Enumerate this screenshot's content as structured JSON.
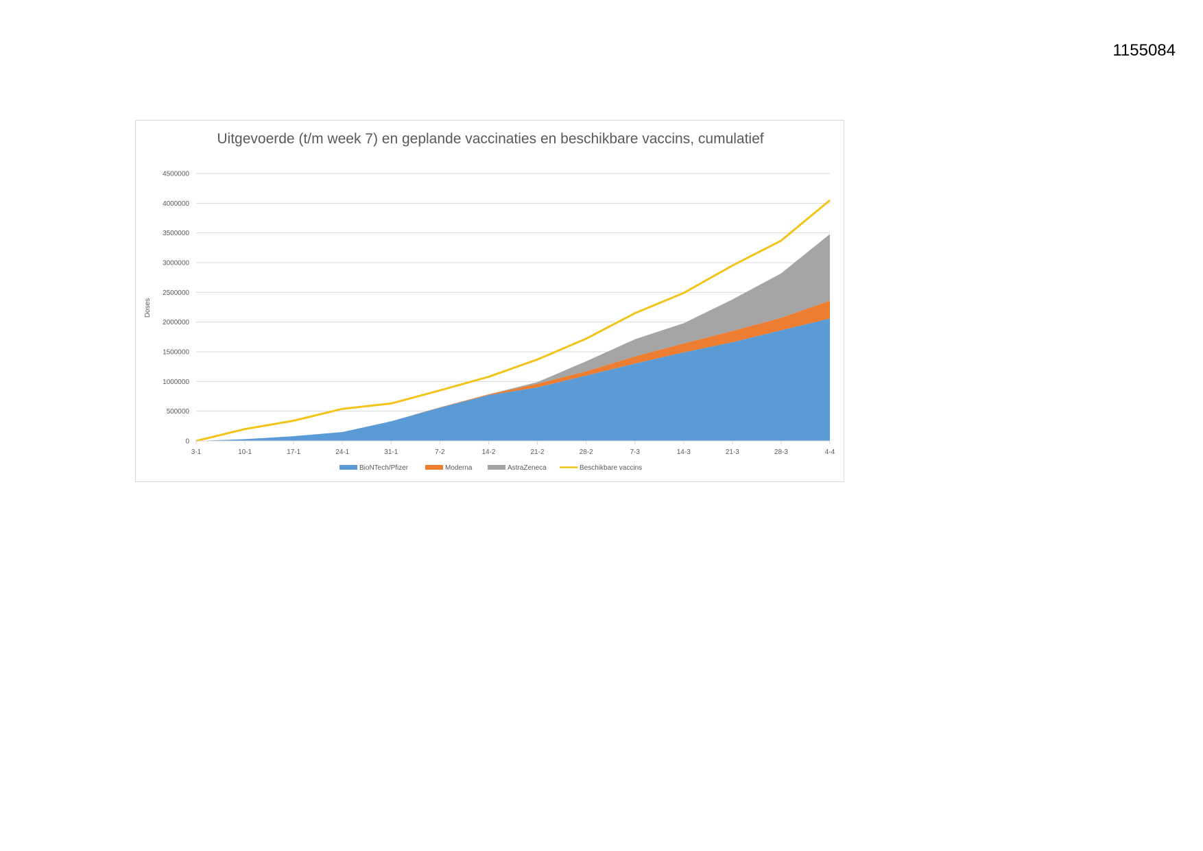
{
  "document": {
    "number": "1155084"
  },
  "colors": {
    "biontech": "#5b9bd5",
    "moderna": "#ed7d31",
    "astrazeneca": "#a5a5a5",
    "available": "#f2c318",
    "grid": "#d9d9d9",
    "text": "#595959"
  },
  "chart_data": {
    "type": "area",
    "title": "Uitgevoerde (t/m week 7) en geplande vaccinaties en beschikbare vaccins, cumulatief",
    "xlabel": "",
    "ylabel": "Doses",
    "ylim": [
      0,
      4500000
    ],
    "yticks": [
      0,
      500000,
      1000000,
      1500000,
      2000000,
      2500000,
      3000000,
      3500000,
      4000000,
      4500000
    ],
    "ytick_labels": [
      "0",
      "500000",
      "1000000",
      "1500000",
      "2000000",
      "2500000",
      "3000000",
      "3500000",
      "4000000",
      "4500000"
    ],
    "grid": true,
    "stacked": true,
    "legend_position": "bottom",
    "categories": [
      "3-1",
      "10-1",
      "17-1",
      "24-1",
      "31-1",
      "7-2",
      "14-2",
      "21-2",
      "28-2",
      "7-3",
      "14-3",
      "21-3",
      "28-3",
      "4-4"
    ],
    "series": [
      {
        "name": "BioNTech/Pfizer",
        "type": "area",
        "values": [
          0,
          30000,
          80000,
          150000,
          330000,
          560000,
          770000,
          900000,
          1100000,
          1300000,
          1490000,
          1660000,
          1860000,
          2060000
        ]
      },
      {
        "name": "Moderna",
        "type": "area",
        "values": [
          0,
          0,
          0,
          0,
          0,
          5000,
          15000,
          60000,
          70000,
          120000,
          150000,
          190000,
          210000,
          300000
        ]
      },
      {
        "name": "AstraZeneca",
        "type": "area",
        "values": [
          0,
          0,
          0,
          0,
          0,
          0,
          0,
          30000,
          170000,
          290000,
          340000,
          530000,
          750000,
          1120000
        ]
      },
      {
        "name": "Beschikbare vaccins",
        "type": "line",
        "values": [
          0,
          200000,
          340000,
          540000,
          630000,
          850000,
          1080000,
          1370000,
          1720000,
          2150000,
          2490000,
          2950000,
          3370000,
          4050000
        ]
      }
    ]
  }
}
